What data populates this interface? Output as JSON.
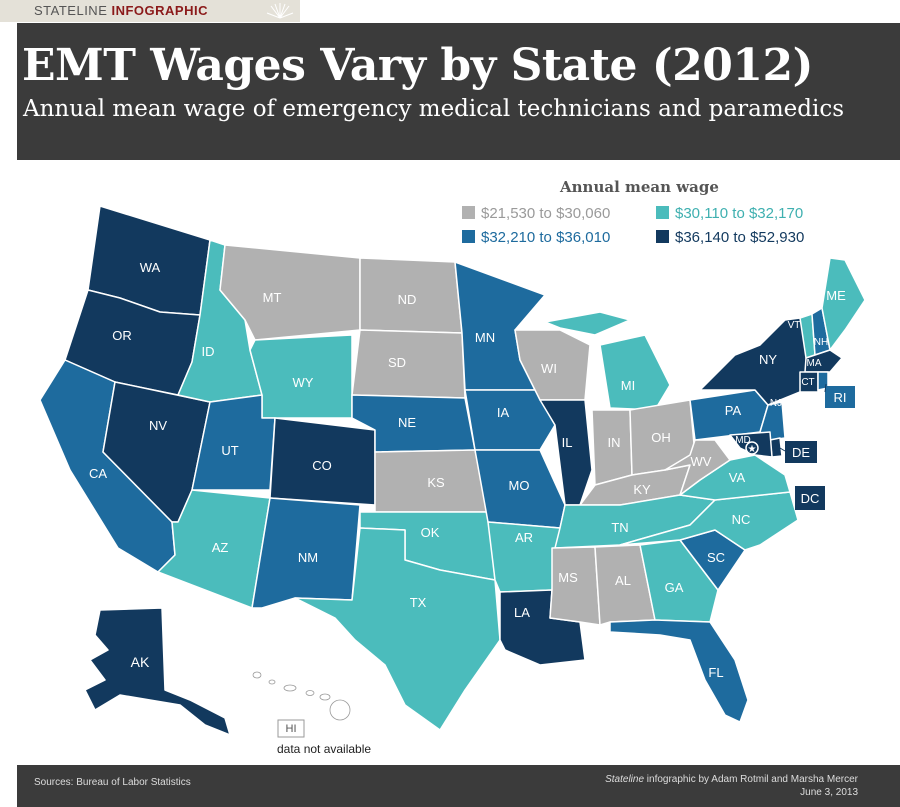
{
  "banner": {
    "prefix": "STATELINE ",
    "suffix": "INFOGRAPHIC"
  },
  "title": "EMT Wages Vary by State (2012)",
  "subtitle": "Annual mean wage of emergency medical technicians and paramedics",
  "legend": {
    "title": "Annual mean wage",
    "items": [
      {
        "label": "$21,530 to $30,060",
        "color": "#b1b1b1"
      },
      {
        "label": "$30,110 to $32,170",
        "color": "#4bbcbc"
      },
      {
        "label": "$32,210 to $36,010",
        "color": "#1e6b9e"
      },
      {
        "label": "$36,140 to $52,930",
        "color": "#12395e"
      }
    ]
  },
  "states": {
    "WA": "WA",
    "OR": "OR",
    "CA": "CA",
    "NV": "NV",
    "ID": "ID",
    "MT": "MT",
    "WY": "WY",
    "UT": "UT",
    "CO": "CO",
    "AZ": "AZ",
    "NM": "NM",
    "ND": "ND",
    "SD": "SD",
    "NE": "NE",
    "KS": "KS",
    "OK": "OK",
    "TX": "TX",
    "MN": "MN",
    "IA": "IA",
    "MO": "MO",
    "AR": "AR",
    "LA": "LA",
    "WI": "WI",
    "IL": "IL",
    "MI": "MI",
    "IN": "IN",
    "OH": "OH",
    "KY": "KY",
    "TN": "TN",
    "MS": "MS",
    "AL": "AL",
    "GA": "GA",
    "FL": "FL",
    "SC": "SC",
    "NC": "NC",
    "VA": "VA",
    "WV": "WV",
    "PA": "PA",
    "NY": "NY",
    "VT": "VT",
    "NH": "NH",
    "ME": "ME",
    "MA": "MA",
    "CT": "CT",
    "RI": "RI",
    "NJ": "NJ",
    "DE": "DE",
    "MD": "MD",
    "DC": "DC",
    "AK": "AK",
    "HI": "HI"
  },
  "hi_note": "data not available",
  "sources": "Sources: Bureau of Labor Statistics",
  "credit": {
    "italic": "Stateline",
    "line1": " infographic by Adam Rotmil and Marsha Mercer",
    "line2": "June 3, 2013"
  }
}
